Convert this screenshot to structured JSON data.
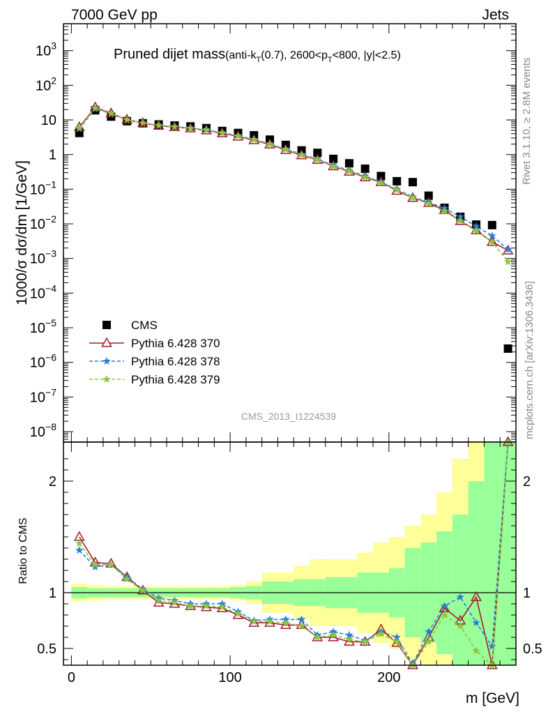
{
  "header": {
    "left": "7000 GeV pp",
    "right": "Jets"
  },
  "side_labels": {
    "rivet": "Rivet 3.1.10, ≥ 2.8M events",
    "mcplots": "mcplots.cern.ch [arXiv:1306.3436]"
  },
  "watermark": "CMS_2013_I1224539",
  "chart_data": [
    {
      "panel": "main",
      "type": "scatter",
      "title": "Pruned dijet mass",
      "title_detail": {
        "open": "(anti-k",
        "sub1": "T",
        "mid": "(0.7), 2600<p",
        "sub2": "T",
        "close": "<800, |y|<2.5)"
      },
      "ylabel": "1000/σ dσ/dm [1/GeV]",
      "yscale": "log",
      "xlim": [
        -5,
        280
      ],
      "ylim": [
        5e-09,
        6000
      ],
      "y_ticks": [
        {
          "base": "10",
          "exp": "3",
          "value": 1000
        },
        {
          "base": "10",
          "exp": "2",
          "value": 100
        },
        {
          "base": "10",
          "exp": "",
          "value": 10
        },
        {
          "base": "1",
          "exp": "",
          "value": 1
        },
        {
          "base": "10",
          "exp": "−1",
          "value": 0.1
        },
        {
          "base": "10",
          "exp": "−2",
          "value": 0.01
        },
        {
          "base": "10",
          "exp": "−3",
          "value": 0.001
        },
        {
          "base": "10",
          "exp": "−4",
          "value": 0.0001
        },
        {
          "base": "10",
          "exp": "−5",
          "value": 1e-05
        },
        {
          "base": "10",
          "exp": "−6",
          "value": 1e-06
        },
        {
          "base": "10",
          "exp": "−7",
          "value": 1e-07
        },
        {
          "base": "10",
          "exp": "−8",
          "value": 1e-08
        }
      ],
      "x": [
        5,
        15,
        25,
        35,
        45,
        55,
        65,
        75,
        85,
        95,
        105,
        115,
        125,
        135,
        145,
        155,
        165,
        175,
        185,
        195,
        205,
        215,
        225,
        235,
        245,
        255,
        265,
        275
      ],
      "series": [
        {
          "name": "CMS",
          "style": "data",
          "color": "#000000",
          "values": [
            4.2,
            19,
            12.5,
            9.2,
            8.0,
            7.4,
            6.9,
            6.5,
            5.8,
            4.8,
            4.2,
            3.6,
            2.7,
            1.9,
            1.32,
            1.12,
            0.75,
            0.56,
            0.39,
            0.24,
            0.17,
            0.16,
            0.065,
            0.029,
            0.016,
            0.0095,
            0.0092,
            2.5e-06
          ]
        },
        {
          "name": "Pythia 6.428 370",
          "style": "solid-triangle",
          "color": "#a01d2c",
          "values": [
            6.2,
            23,
            15.5,
            10.2,
            8.1,
            6.8,
            6.2,
            5.7,
            5.0,
            4.1,
            3.3,
            2.6,
            1.95,
            1.35,
            0.95,
            0.7,
            0.46,
            0.32,
            0.22,
            0.16,
            0.09,
            0.056,
            0.04,
            0.025,
            0.012,
            0.0065,
            0.003,
            0.0017
          ]
        },
        {
          "name": "Pythia 6.428 378",
          "style": "dashed-star",
          "color": "#2a7fd4",
          "values": [
            5.6,
            21,
            15.2,
            10.1,
            8.2,
            7.0,
            6.4,
            5.8,
            5.2,
            4.3,
            3.5,
            2.75,
            2.05,
            1.45,
            1.02,
            0.74,
            0.49,
            0.35,
            0.24,
            0.16,
            0.1,
            0.06,
            0.042,
            0.028,
            0.016,
            0.0085,
            0.0045,
            0.0018
          ]
        },
        {
          "name": "Pythia 6.428 379",
          "style": "dashed-star",
          "color": "#8ec63f",
          "values": [
            5.9,
            22,
            15.3,
            10.1,
            8.1,
            6.9,
            6.3,
            5.7,
            5.1,
            4.2,
            3.4,
            2.7,
            2.0,
            1.4,
            0.98,
            0.71,
            0.46,
            0.33,
            0.22,
            0.15,
            0.095,
            0.057,
            0.038,
            0.023,
            0.012,
            0.0062,
            0.003,
            0.0008
          ]
        }
      ],
      "legend": "upper-left"
    },
    {
      "panel": "ratio",
      "type": "line",
      "ylabel": "Ratio to CMS",
      "xlabel": "m [GeV]",
      "xlim": [
        -5,
        280
      ],
      "ylim": [
        0.35,
        2.35
      ],
      "x_ticks": [
        0,
        100,
        200
      ],
      "y_ticks": [
        0.5,
        1,
        2
      ],
      "reference": 1,
      "x": [
        5,
        15,
        25,
        35,
        45,
        55,
        65,
        75,
        85,
        95,
        105,
        115,
        125,
        135,
        145,
        155,
        165,
        175,
        185,
        195,
        205,
        215,
        225,
        235,
        245,
        255,
        265,
        275
      ],
      "band_inner": [
        0.05,
        0.04,
        0.04,
        0.04,
        0.04,
        0.04,
        0.04,
        0.04,
        0.04,
        0.04,
        0.05,
        0.06,
        0.1,
        0.1,
        0.12,
        0.12,
        0.14,
        0.14,
        0.18,
        0.18,
        0.22,
        0.4,
        0.45,
        0.55,
        0.7,
        1.0,
        1.4,
        1.4
      ],
      "band_outer": [
        0.08,
        0.07,
        0.06,
        0.06,
        0.06,
        0.06,
        0.06,
        0.06,
        0.06,
        0.06,
        0.07,
        0.1,
        0.18,
        0.18,
        0.24,
        0.3,
        0.3,
        0.3,
        0.36,
        0.45,
        0.5,
        0.6,
        0.7,
        0.9,
        1.2,
        1.5,
        2.0,
        2.0
      ],
      "series": [
        {
          "name": "Pythia 6.428 370",
          "color": "#a01d2c",
          "values": [
            1.5,
            1.27,
            1.26,
            1.14,
            1.02,
            0.91,
            0.9,
            0.88,
            0.87,
            0.86,
            0.8,
            0.73,
            0.73,
            0.71,
            0.71,
            0.6,
            0.6,
            0.56,
            0.56,
            0.67,
            0.55,
            0.34,
            0.6,
            0.86,
            0.75,
            0.96,
            0.35,
            2.35
          ]
        },
        {
          "name": "Pythia 6.428 378",
          "color": "#2a7fd4",
          "values": [
            1.38,
            1.23,
            1.25,
            1.14,
            1.03,
            0.95,
            0.93,
            0.9,
            0.9,
            0.9,
            0.83,
            0.75,
            0.76,
            0.76,
            0.76,
            0.62,
            0.65,
            0.62,
            0.57,
            0.65,
            0.6,
            0.36,
            0.65,
            0.88,
            0.96,
            0.73,
            0.52,
            2.35
          ]
        },
        {
          "name": "Pythia 6.428 379",
          "color": "#8ec63f",
          "values": [
            1.44,
            1.25,
            1.25,
            1.12,
            1.02,
            0.93,
            0.91,
            0.88,
            0.88,
            0.87,
            0.81,
            0.74,
            0.74,
            0.73,
            0.7,
            0.6,
            0.62,
            0.58,
            0.56,
            0.63,
            0.56,
            0.35,
            0.56,
            0.8,
            0.7,
            0.48,
            0.35,
            2.35
          ]
        }
      ]
    }
  ]
}
